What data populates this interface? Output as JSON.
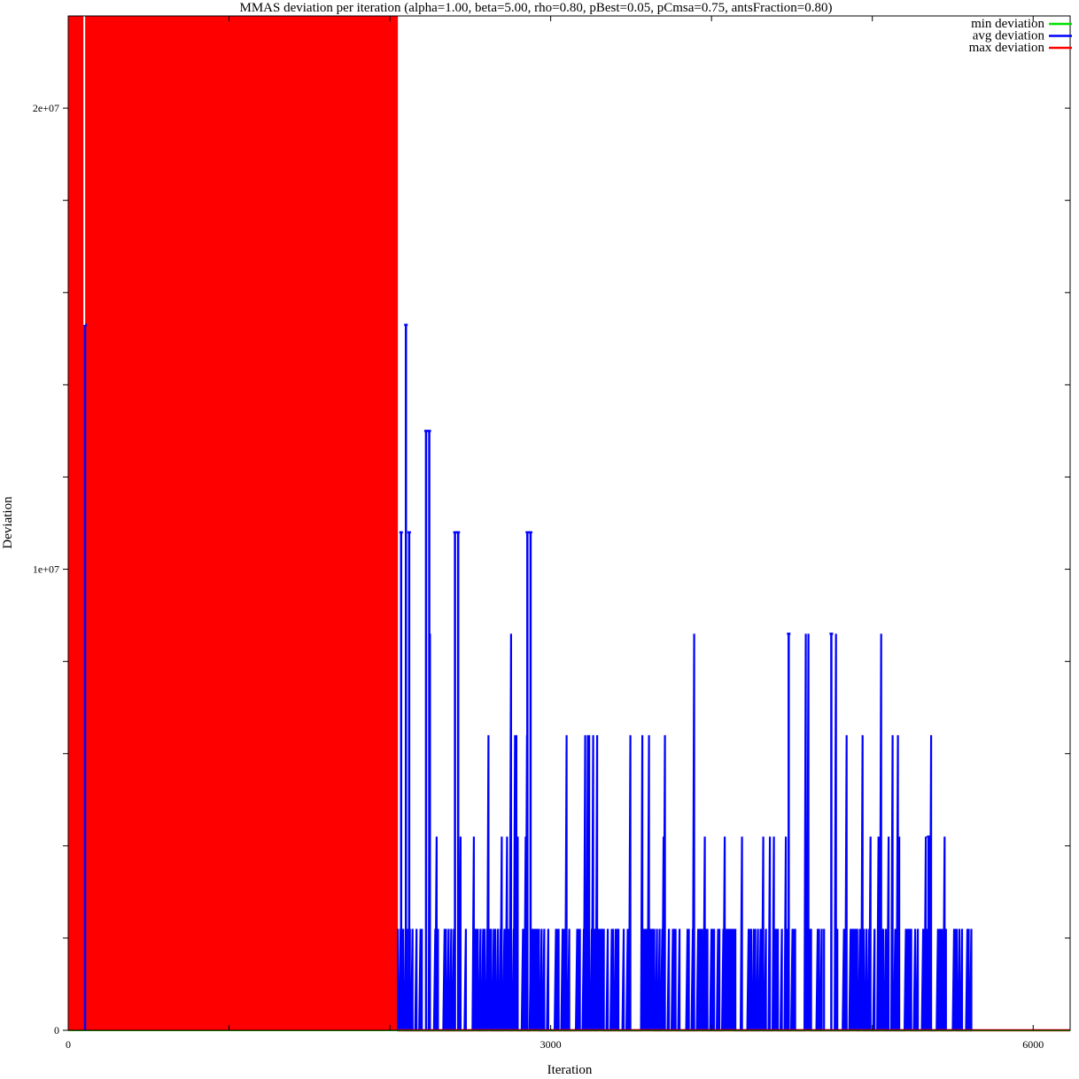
{
  "chart_data": {
    "type": "line",
    "title": "MMAS deviation per iteration (alpha=1.00, beta=5.00, rho=0.80, pBest=0.05, pCmsa=0.75, antsFraction=0.80)",
    "xlabel": "Iteration",
    "ylabel": "Deviation",
    "xlim": [
      0,
      6230
    ],
    "ylim": [
      0,
      22000000
    ],
    "x_ticks": [
      {
        "value": 0,
        "label": "0"
      },
      {
        "value": 1000,
        "label": ""
      },
      {
        "value": 2000,
        "label": ""
      },
      {
        "value": 3000,
        "label": "3000"
      },
      {
        "value": 4000,
        "label": ""
      },
      {
        "value": 5000,
        "label": ""
      },
      {
        "value": 6000,
        "label": "6000"
      }
    ],
    "y_ticks": [
      {
        "value": 0,
        "label": "0"
      },
      {
        "value": 2000000,
        "label": ""
      },
      {
        "value": 4000000,
        "label": ""
      },
      {
        "value": 6000000,
        "label": ""
      },
      {
        "value": 8000000,
        "label": ""
      },
      {
        "value": 10000000,
        "label": "1e+07"
      },
      {
        "value": 12000000,
        "label": ""
      },
      {
        "value": 14000000,
        "label": ""
      },
      {
        "value": 16000000,
        "label": ""
      },
      {
        "value": 18000000,
        "label": ""
      },
      {
        "value": 20000000,
        "label": "2e+07"
      }
    ],
    "grid": false,
    "legend_position": "top-right",
    "series": [
      {
        "name": "min deviation",
        "color": "#00e000",
        "points": [
          [
            0,
            0
          ],
          [
            6230,
            0
          ]
        ]
      },
      {
        "name": "avg deviation",
        "color": "#0000ff",
        "plateau_levels": [
          13000000,
          10800000,
          8600000,
          6400000,
          4200000,
          2200000,
          0
        ],
        "oscillation_bands": [
          {
            "x_start": 2050,
            "x_end": 2200,
            "low": 0,
            "high": 10800000
          },
          {
            "x_start": 2200,
            "x_end": 3000,
            "low": 0,
            "high": 8600000
          },
          {
            "x_start": 3000,
            "x_end": 4700,
            "low": 0,
            "high": 8600000
          },
          {
            "x_start": 4700,
            "x_end": 5060,
            "low": 0,
            "high": 8600000
          },
          {
            "x_start": 5060,
            "x_end": 5400,
            "low": 0,
            "high": 6400000
          },
          {
            "x_start": 5400,
            "x_end": 5500,
            "low": 0,
            "high": 4200000
          },
          {
            "x_start": 5500,
            "x_end": 5630,
            "low": 0,
            "high": 2200000
          }
        ],
        "notable_spikes": [
          {
            "x": 105,
            "y": 15300000
          },
          {
            "x": 2100,
            "y": 15300000
          },
          {
            "x": 2225,
            "y": 13000000
          },
          {
            "x": 2245,
            "y": 13000000
          },
          {
            "x": 2070,
            "y": 10800000
          },
          {
            "x": 2120,
            "y": 10800000
          },
          {
            "x": 2405,
            "y": 10800000
          },
          {
            "x": 2425,
            "y": 10800000
          },
          {
            "x": 2855,
            "y": 10800000
          },
          {
            "x": 2875,
            "y": 10800000
          },
          {
            "x": 4480,
            "y": 8600000
          },
          {
            "x": 4745,
            "y": 8600000
          },
          {
            "x": 5350,
            "y": 4200000
          }
        ]
      },
      {
        "name": "max deviation",
        "color": "#ff0000",
        "plateau_levels": [
          22000000,
          0
        ],
        "oscillation_bands": [
          {
            "x_start": 0,
            "x_end": 2050,
            "low": 0,
            "high": 22000000
          }
        ],
        "points": [
          [
            2050,
            0
          ],
          [
            6230,
            0
          ]
        ]
      }
    ]
  }
}
